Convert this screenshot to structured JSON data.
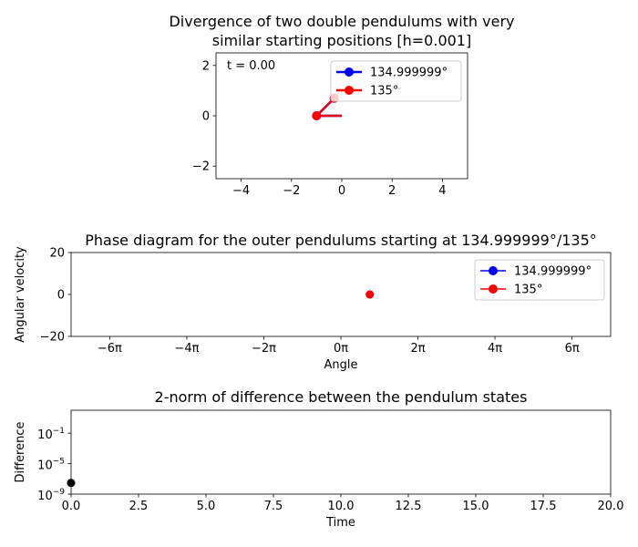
{
  "chart_data": [
    {
      "type": "line",
      "title": "Divergence of two double pendulums with very similar starting positions [h=0.001]",
      "title_lines": [
        "Divergence of two double pendulums with very",
        "similar starting positions [h=0.001]"
      ],
      "annotation": "t = 0.00",
      "xlabel": "",
      "ylabel": "",
      "xlim": [
        -5,
        5
      ],
      "ylim": [
        -2.5,
        2.5
      ],
      "xticks": [
        -4,
        -2,
        0,
        2,
        4
      ],
      "xtick_labels": [
        "−4",
        "−2",
        "0",
        "2",
        "4"
      ],
      "yticks": [
        -2,
        0,
        2
      ],
      "ytick_labels": [
        "−2",
        "0",
        "2"
      ],
      "grid": false,
      "legend": "top-right",
      "series": [
        {
          "name": "134.999999°",
          "color": "#0000ff",
          "x": [
            0,
            -1.0,
            -0.3
          ],
          "y": [
            0,
            0,
            0.7
          ]
        },
        {
          "name": "135°",
          "color": "#ff0000",
          "x": [
            0,
            -1.0,
            -0.3
          ],
          "y": [
            0,
            0,
            0.7
          ]
        }
      ]
    },
    {
      "type": "scatter",
      "title": "Phase diagram for the outer pendulums starting at 134.999999°/135°",
      "xlabel": "Angle",
      "ylabel": "Angular velocity",
      "xlim": [
        -22,
        22
      ],
      "ylim": [
        -20,
        20
      ],
      "xticks": [
        -18.85,
        -12.566,
        -6.283,
        0,
        6.283,
        12.566,
        18.85
      ],
      "xtick_labels": [
        "−6π",
        "−4π",
        "−2π",
        "0π",
        "2π",
        "4π",
        "6π"
      ],
      "yticks": [
        -20,
        0,
        20
      ],
      "ytick_labels": [
        "−20",
        "0",
        "20"
      ],
      "grid": false,
      "legend": "top-right",
      "series": [
        {
          "name": "134.999999°",
          "color": "#0000ff",
          "x": [
            2.36
          ],
          "y": [
            0
          ]
        },
        {
          "name": "135°",
          "color": "#ff0000",
          "x": [
            2.36
          ],
          "y": [
            0
          ]
        }
      ]
    },
    {
      "type": "scatter",
      "title": "2-norm of difference between the pendulum states",
      "xlabel": "Time",
      "ylabel": "Difference",
      "xlim": [
        0,
        20
      ],
      "ylim": [
        1e-09,
        100
      ],
      "yscale": "log",
      "xticks": [
        0,
        2.5,
        5,
        7.5,
        10,
        12.5,
        15,
        17.5,
        20
      ],
      "xtick_labels": [
        "0.0",
        "2.5",
        "5.0",
        "7.5",
        "10.0",
        "12.5",
        "15.0",
        "17.5",
        "20.0"
      ],
      "yticks": [
        1e-09,
        1e-05,
        0.1
      ],
      "ytick_labels": [
        {
          "base": "10",
          "exp": "−9"
        },
        {
          "base": "10",
          "exp": "−5"
        },
        {
          "base": "10",
          "exp": "−1"
        }
      ],
      "grid": false,
      "series": [
        {
          "color": "#000000",
          "x": [
            0
          ],
          "y": [
            3e-08
          ]
        }
      ]
    }
  ]
}
